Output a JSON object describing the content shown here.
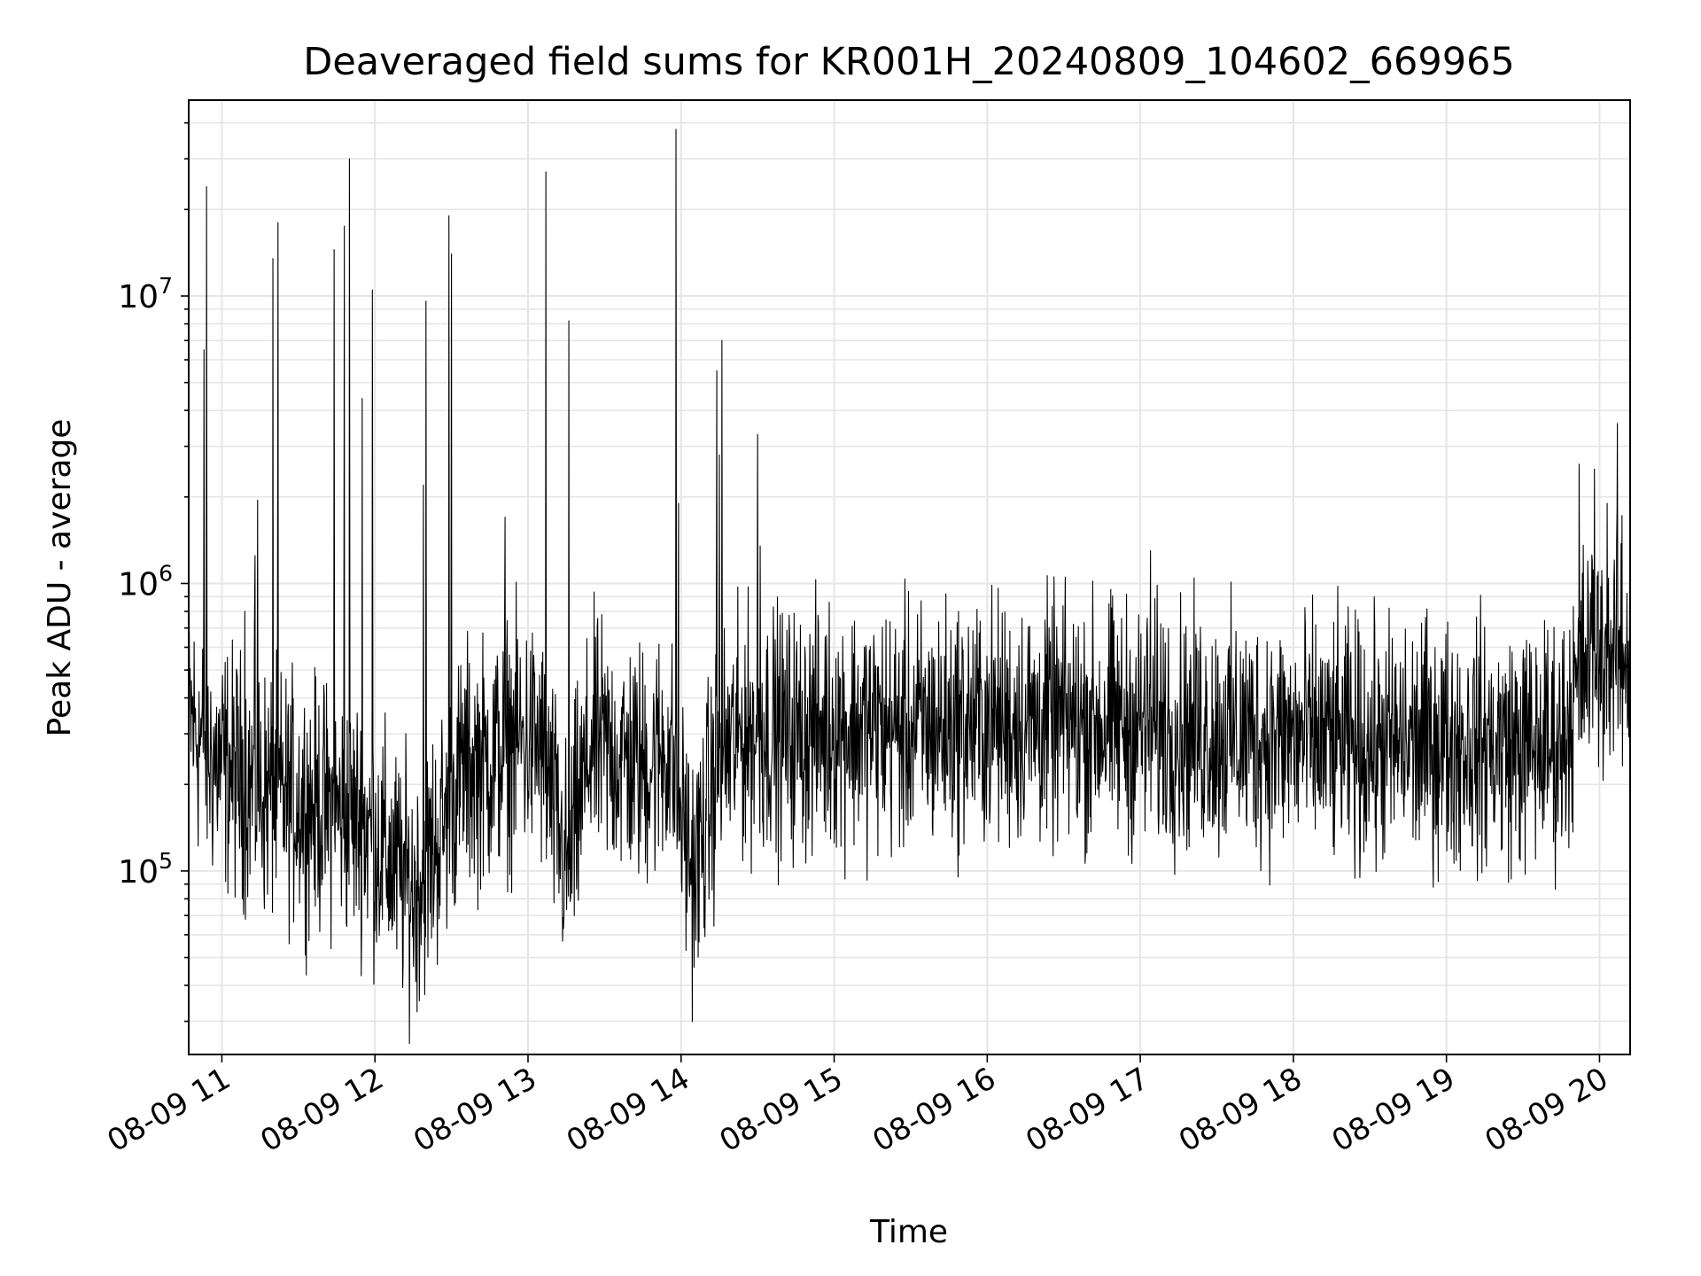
{
  "chart_data": {
    "type": "line",
    "title": "Deaveraged field sums for KR001H_20240809_104602_669965",
    "xlabel": "Time",
    "ylabel": "Peak ADU - average",
    "x_scale": "time",
    "y_scale": "log",
    "xlim": [
      "2024-08-09 10:47",
      "2024-08-09 20:12"
    ],
    "ylim": [
      23000,
      48000000
    ],
    "x_ticks": [
      {
        "value": "2024-08-09 11:00",
        "label": "08-09 11"
      },
      {
        "value": "2024-08-09 12:00",
        "label": "08-09 12"
      },
      {
        "value": "2024-08-09 13:00",
        "label": "08-09 13"
      },
      {
        "value": "2024-08-09 14:00",
        "label": "08-09 14"
      },
      {
        "value": "2024-08-09 15:00",
        "label": "08-09 15"
      },
      {
        "value": "2024-08-09 16:00",
        "label": "08-09 16"
      },
      {
        "value": "2024-08-09 17:00",
        "label": "08-09 17"
      },
      {
        "value": "2024-08-09 18:00",
        "label": "08-09 18"
      },
      {
        "value": "2024-08-09 19:00",
        "label": "08-09 19"
      },
      {
        "value": "2024-08-09 20:00",
        "label": "08-09 20"
      }
    ],
    "y_ticks": [
      {
        "value": 100000,
        "base": "10",
        "exp": "5"
      },
      {
        "value": 1000000,
        "base": "10",
        "exp": "6"
      },
      {
        "value": 10000000,
        "base": "10",
        "exp": "7"
      }
    ],
    "grid": true,
    "line_color": "#000000",
    "grid_color": "#e6e6e6",
    "series": [
      {
        "x": [
          "2024-08-09 10:47",
          "2024-08-09 10:55",
          "2024-08-09 11:05",
          "2024-08-09 11:15",
          "2024-08-09 11:25",
          "2024-08-09 11:35",
          "2024-08-09 11:45",
          "2024-08-09 11:55",
          "2024-08-09 12:05",
          "2024-08-09 12:15",
          "2024-08-09 12:25",
          "2024-08-09 12:35",
          "2024-08-09 12:45",
          "2024-08-09 12:55",
          "2024-08-09 13:05",
          "2024-08-09 13:15",
          "2024-08-09 13:25",
          "2024-08-09 13:35",
          "2024-08-09 13:45",
          "2024-08-09 13:55",
          "2024-08-09 14:05",
          "2024-08-09 14:15",
          "2024-08-09 14:25",
          "2024-08-09 14:35",
          "2024-08-09 14:45",
          "2024-08-09 15:00",
          "2024-08-09 15:30",
          "2024-08-09 16:00",
          "2024-08-09 16:30",
          "2024-08-09 17:00",
          "2024-08-09 17:30",
          "2024-08-09 18:00",
          "2024-08-09 18:30",
          "2024-08-09 19:00",
          "2024-08-09 19:30",
          "2024-08-09 19:45",
          "2024-08-09 19:55",
          "2024-08-09 20:05",
          "2024-08-09 20:12"
        ],
        "y": [
          350000,
          250000,
          220000,
          190000,
          180000,
          170000,
          160000,
          150000,
          110000,
          85000,
          130000,
          230000,
          240000,
          290000,
          270000,
          100000,
          280000,
          250000,
          230000,
          270000,
          95000,
          250000,
          300000,
          310000,
          300000,
          320000,
          310000,
          330000,
          330000,
          320000,
          300000,
          290000,
          270000,
          280000,
          270000,
          280000,
          550000,
          560000,
          560000
        ]
      }
    ],
    "spikes": [
      {
        "x": "2024-08-09 10:53",
        "y": 6500000
      },
      {
        "x": "2024-08-09 10:54",
        "y": 24000000
      },
      {
        "x": "2024-08-09 11:09",
        "y": 800000
      },
      {
        "x": "2024-08-09 11:13",
        "y": 1250000
      },
      {
        "x": "2024-08-09 11:14",
        "y": 1950000
      },
      {
        "x": "2024-08-09 11:20",
        "y": 13500000
      },
      {
        "x": "2024-08-09 11:22",
        "y": 18000000
      },
      {
        "x": "2024-08-09 11:44",
        "y": 14500000
      },
      {
        "x": "2024-08-09 11:48",
        "y": 17500000
      },
      {
        "x": "2024-08-09 11:50",
        "y": 30000000
      },
      {
        "x": "2024-08-09 11:55",
        "y": 4400000
      },
      {
        "x": "2024-08-09 11:59",
        "y": 10500000
      },
      {
        "x": "2024-08-09 12:19",
        "y": 2200000
      },
      {
        "x": "2024-08-09 12:20",
        "y": 9600000
      },
      {
        "x": "2024-08-09 12:29",
        "y": 19000000
      },
      {
        "x": "2024-08-09 12:30",
        "y": 14000000
      },
      {
        "x": "2024-08-09 12:51",
        "y": 1700000
      },
      {
        "x": "2024-08-09 13:07",
        "y": 27000000
      },
      {
        "x": "2024-08-09 13:16",
        "y": 8200000
      },
      {
        "x": "2024-08-09 13:58",
        "y": 38000000
      },
      {
        "x": "2024-08-09 13:59",
        "y": 1900000
      },
      {
        "x": "2024-08-09 14:14",
        "y": 5500000
      },
      {
        "x": "2024-08-09 14:15",
        "y": 2800000
      },
      {
        "x": "2024-08-09 14:16",
        "y": 7000000
      },
      {
        "x": "2024-08-09 14:30",
        "y": 3300000
      },
      {
        "x": "2024-08-09 14:31",
        "y": 1350000
      },
      {
        "x": "2024-08-09 17:04",
        "y": 1300000
      },
      {
        "x": "2024-08-09 17:09",
        "y": 700000
      },
      {
        "x": "2024-08-09 19:52",
        "y": 2600000
      },
      {
        "x": "2024-08-09 19:58",
        "y": 2500000
      },
      {
        "x": "2024-08-09 20:03",
        "y": 1900000
      },
      {
        "x": "2024-08-09 20:07",
        "y": 3600000
      }
    ]
  }
}
